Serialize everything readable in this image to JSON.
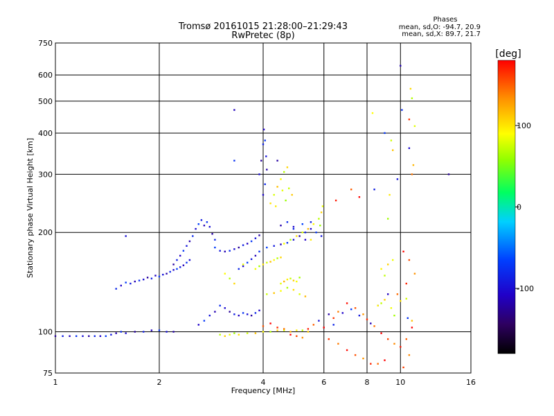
{
  "chart_data": {
    "type": "scatter",
    "title": "Tromsø 20161015 21:28:00–21:29:43",
    "subtitle": "RwPretec (8p)",
    "xlabel": "Frequency [MHz]",
    "ylabel": "Stationary phase Virtual Height [km]",
    "x_scale": "log",
    "y_scale": "log",
    "xlim": [
      1,
      16
    ],
    "ylim": [
      75,
      750
    ],
    "x_ticks": [
      1,
      2,
      4,
      6,
      8,
      10,
      16
    ],
    "y_ticks": [
      75,
      100,
      200,
      300,
      400,
      500,
      600,
      750
    ],
    "grid": true,
    "phase_info": {
      "heading": "Phases",
      "line_o": "mean, sd,O: -94.7, 20.9",
      "line_x": "mean, sd,X:  89.7, 21.7"
    },
    "colorbar": {
      "label": "[deg]",
      "range": [
        -180,
        180
      ],
      "ticks": [
        100,
        0,
        -100
      ]
    },
    "series": [
      {
        "role": "o-mode trace",
        "mean_phase_deg": -95,
        "points": [
          [
            1.0,
            97
          ],
          [
            1.05,
            97
          ],
          [
            1.1,
            97
          ],
          [
            1.15,
            97
          ],
          [
            1.2,
            97
          ],
          [
            1.25,
            97
          ],
          [
            1.3,
            97
          ],
          [
            1.35,
            97
          ],
          [
            1.4,
            97
          ],
          [
            1.45,
            98
          ],
          [
            1.5,
            99
          ],
          [
            1.55,
            100
          ],
          [
            1.6,
            99
          ],
          [
            1.7,
            100
          ],
          [
            1.8,
            100
          ],
          [
            1.9,
            101
          ],
          [
            2.0,
            101
          ],
          [
            2.1,
            100
          ],
          [
            2.2,
            100
          ],
          [
            1.5,
            135
          ],
          [
            1.55,
            138
          ],
          [
            1.6,
            141
          ],
          [
            1.65,
            140
          ],
          [
            1.7,
            142
          ],
          [
            1.75,
            143
          ],
          [
            1.8,
            144
          ],
          [
            1.85,
            146
          ],
          [
            1.9,
            145
          ],
          [
            1.95,
            148
          ],
          [
            2.0,
            147
          ],
          [
            2.05,
            149
          ],
          [
            2.1,
            150
          ],
          [
            2.15,
            152
          ],
          [
            2.2,
            154
          ],
          [
            2.25,
            155
          ],
          [
            2.3,
            157
          ],
          [
            2.35,
            159
          ],
          [
            2.4,
            162
          ],
          [
            2.45,
            165
          ],
          [
            2.2,
            160
          ],
          [
            2.25,
            165
          ],
          [
            2.3,
            170
          ],
          [
            2.35,
            176
          ],
          [
            2.4,
            182
          ],
          [
            2.45,
            188
          ],
          [
            2.5,
            195
          ],
          [
            2.55,
            205
          ],
          [
            2.6,
            212
          ],
          [
            2.65,
            218
          ],
          [
            2.7,
            210
          ],
          [
            2.75,
            215
          ],
          [
            2.8,
            208
          ],
          [
            2.85,
            198
          ],
          [
            2.9,
            190
          ],
          [
            2.6,
            105
          ],
          [
            2.7,
            108
          ],
          [
            2.8,
            112
          ],
          [
            2.9,
            115
          ],
          [
            3.0,
            120
          ],
          [
            3.1,
            118
          ],
          [
            3.2,
            115
          ],
          [
            3.3,
            113
          ],
          [
            3.4,
            112
          ],
          [
            3.5,
            114
          ],
          [
            3.6,
            113
          ],
          [
            3.7,
            112
          ],
          [
            3.8,
            114
          ],
          [
            3.9,
            116
          ],
          [
            2.9,
            180
          ],
          [
            3.0,
            176
          ],
          [
            3.1,
            175
          ],
          [
            3.2,
            176
          ],
          [
            3.3,
            178
          ],
          [
            3.4,
            180
          ],
          [
            3.5,
            183
          ],
          [
            3.6,
            185
          ],
          [
            3.7,
            188
          ],
          [
            3.8,
            192
          ],
          [
            3.9,
            196
          ],
          [
            3.4,
            155
          ],
          [
            3.5,
            158
          ],
          [
            3.6,
            162
          ],
          [
            3.7,
            166
          ],
          [
            3.8,
            170
          ],
          [
            3.9,
            175
          ],
          [
            3.9,
            300
          ],
          [
            3.95,
            330
          ],
          [
            4.0,
            370
          ],
          [
            4.02,
            410
          ],
          [
            4.05,
            380
          ],
          [
            4.08,
            340
          ],
          [
            4.1,
            310
          ],
          [
            4.05,
            280
          ],
          [
            4.0,
            260
          ],
          [
            4.1,
            180
          ],
          [
            4.3,
            182
          ],
          [
            4.5,
            184
          ],
          [
            4.7,
            186
          ],
          [
            4.9,
            190
          ],
          [
            5.1,
            195
          ],
          [
            5.3,
            200
          ],
          [
            5.5,
            205
          ],
          [
            5.7,
            200
          ],
          [
            5.9,
            195
          ],
          [
            4.5,
            210
          ],
          [
            4.7,
            215
          ],
          [
            4.9,
            208
          ],
          [
            5.2,
            212
          ],
          [
            5.5,
            215
          ],
          [
            3.3,
            470
          ],
          [
            3.3,
            330
          ],
          [
            1.6,
            195
          ],
          [
            4.4,
            330
          ],
          [
            4.9,
            205
          ],
          [
            5.3,
            190
          ],
          [
            9.0,
            400
          ],
          [
            9.8,
            290
          ],
          [
            10.0,
            640
          ],
          [
            10.1,
            470
          ],
          [
            10.6,
            360
          ],
          [
            13.8,
            300
          ],
          [
            8.4,
            270
          ],
          [
            9.2,
            130
          ],
          [
            10.5,
            110
          ],
          [
            5.8,
            108
          ],
          [
            6.2,
            113
          ],
          [
            6.4,
            105
          ],
          [
            6.8,
            114
          ],
          [
            7.2,
            117
          ],
          [
            7.6,
            112
          ],
          [
            8.2,
            106
          ],
          [
            8.6,
            120
          ]
        ]
      },
      {
        "role": "x-mode trace",
        "mean_phase_deg": 90,
        "points": [
          [
            3.0,
            98
          ],
          [
            3.1,
            97
          ],
          [
            3.2,
            98
          ],
          [
            3.3,
            99
          ],
          [
            3.4,
            98
          ],
          [
            3.6,
            99
          ],
          [
            3.8,
            99
          ],
          [
            4.0,
            100
          ],
          [
            4.2,
            100
          ],
          [
            4.4,
            101
          ],
          [
            4.6,
            101
          ],
          [
            4.8,
            100
          ],
          [
            5.0,
            101
          ],
          [
            5.2,
            101
          ],
          [
            5.4,
            100
          ],
          [
            3.8,
            155
          ],
          [
            3.9,
            158
          ],
          [
            4.0,
            160
          ],
          [
            4.1,
            162
          ],
          [
            4.2,
            163
          ],
          [
            4.3,
            165
          ],
          [
            4.4,
            167
          ],
          [
            4.5,
            168
          ],
          [
            4.5,
            140
          ],
          [
            4.6,
            142
          ],
          [
            4.7,
            144
          ],
          [
            4.8,
            145
          ],
          [
            4.9,
            143
          ],
          [
            5.0,
            142
          ],
          [
            5.1,
            146
          ],
          [
            4.2,
            245
          ],
          [
            4.3,
            260
          ],
          [
            4.4,
            275
          ],
          [
            4.5,
            290
          ],
          [
            4.6,
            305
          ],
          [
            4.7,
            315
          ],
          [
            4.55,
            268
          ],
          [
            4.65,
            250
          ],
          [
            4.35,
            240
          ],
          [
            4.75,
            272
          ],
          [
            4.85,
            260
          ],
          [
            4.6,
            185
          ],
          [
            4.8,
            190
          ],
          [
            5.0,
            195
          ],
          [
            5.2,
            200
          ],
          [
            5.4,
            205
          ],
          [
            5.6,
            212
          ],
          [
            5.8,
            220
          ],
          [
            5.9,
            230
          ],
          [
            5.95,
            240
          ],
          [
            5.85,
            210
          ],
          [
            5.5,
            190
          ],
          [
            4.1,
            130
          ],
          [
            4.3,
            131
          ],
          [
            4.5,
            133
          ],
          [
            4.7,
            136
          ],
          [
            4.9,
            134
          ],
          [
            5.1,
            130
          ],
          [
            5.3,
            128
          ],
          [
            8.8,
            155
          ],
          [
            9.0,
            148
          ],
          [
            9.2,
            160
          ],
          [
            9.5,
            165
          ],
          [
            9.2,
            220
          ],
          [
            9.3,
            260
          ],
          [
            9.4,
            380
          ],
          [
            9.5,
            355
          ],
          [
            8.3,
            460
          ],
          [
            10.8,
            510
          ],
          [
            10.7,
            545
          ],
          [
            11.0,
            420
          ],
          [
            10.9,
            320
          ],
          [
            8.6,
            120
          ],
          [
            8.8,
            122
          ],
          [
            9.0,
            125
          ],
          [
            9.4,
            118
          ],
          [
            9.6,
            112
          ],
          [
            10.0,
            124
          ],
          [
            10.4,
            126
          ],
          [
            10.8,
            108
          ],
          [
            3.1,
            150
          ],
          [
            3.2,
            145
          ],
          [
            3.3,
            140
          ],
          [
            3.5,
            160
          ]
        ]
      },
      {
        "role": "mixed-phase echoes",
        "mean_phase_deg": 160,
        "points": [
          [
            4.0,
            104
          ],
          [
            4.2,
            106
          ],
          [
            4.4,
            103
          ],
          [
            4.6,
            102
          ],
          [
            4.8,
            98
          ],
          [
            5.0,
            97
          ],
          [
            5.2,
            96
          ],
          [
            5.4,
            102
          ],
          [
            5.6,
            105
          ],
          [
            6.0,
            103
          ],
          [
            6.4,
            110
          ],
          [
            6.6,
            115
          ],
          [
            7.0,
            122
          ],
          [
            7.4,
            118
          ],
          [
            7.8,
            113
          ],
          [
            8.0,
            109
          ],
          [
            8.4,
            104
          ],
          [
            8.8,
            99
          ],
          [
            9.2,
            95
          ],
          [
            9.6,
            92
          ],
          [
            10.0,
            90
          ],
          [
            10.4,
            95
          ],
          [
            10.8,
            103
          ],
          [
            6.2,
            95
          ],
          [
            6.6,
            92
          ],
          [
            7.0,
            88
          ],
          [
            7.4,
            85
          ],
          [
            7.8,
            83
          ],
          [
            8.2,
            80
          ],
          [
            8.6,
            80
          ],
          [
            9.0,
            82
          ],
          [
            10.2,
            78
          ],
          [
            10.6,
            85
          ],
          [
            6.5,
            250
          ],
          [
            7.2,
            270
          ],
          [
            7.6,
            256
          ],
          [
            10.6,
            440
          ],
          [
            10.8,
            300
          ],
          [
            10.2,
            175
          ],
          [
            10.6,
            165
          ],
          [
            11.0,
            150
          ],
          [
            10.4,
            140
          ],
          [
            9.8,
            130
          ]
        ]
      }
    ]
  }
}
